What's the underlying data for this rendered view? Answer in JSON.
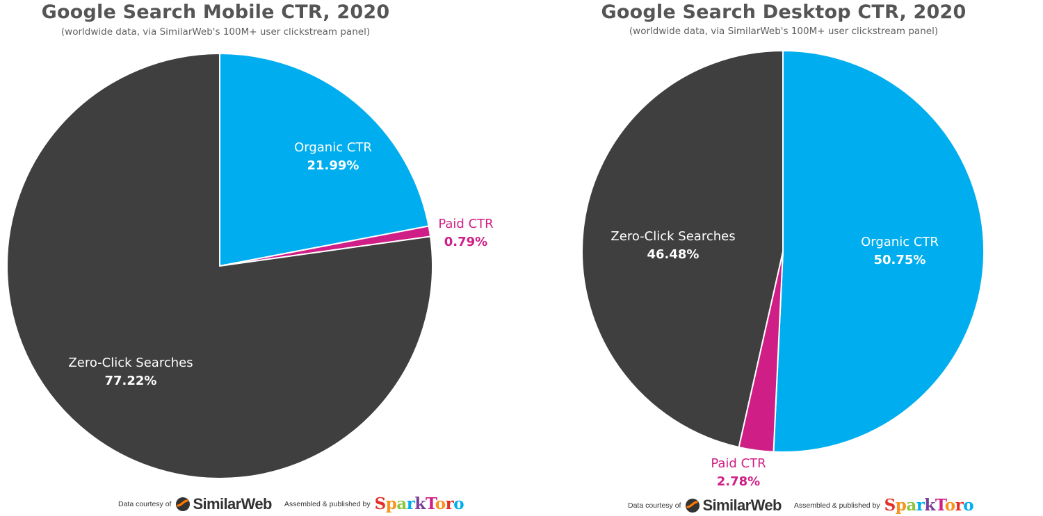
{
  "colors": {
    "organic": "#00AEEF",
    "paid": "#CF1F87",
    "zero": "#3F3F3F",
    "title": "#555555",
    "label_light": "#FFFFFF",
    "label_dark": "#333333"
  },
  "chart_data": [
    {
      "type": "pie",
      "title": "Google Search Mobile CTR, 2020",
      "subtitle": "(worldwide data, via SimilarWeb's 100M+ user clickstream panel)",
      "slices": [
        {
          "label": "Organic CTR",
          "value_label": "21.99%",
          "value": 21.99,
          "color": "#00AEEF"
        },
        {
          "label": "Paid CTR",
          "value_label": "0.79%",
          "value": 0.79,
          "color": "#CF1F87"
        },
        {
          "label": "Zero-Click Searches",
          "value_label": "77.22%",
          "value": 77.22,
          "color": "#3F3F3F"
        }
      ],
      "footer": {
        "courtesy_text": "Data courtesy of",
        "courtesy_brand": "SimilarWeb",
        "published_text": "Assembled & published by",
        "published_brand": "SparkToro"
      }
    },
    {
      "type": "pie",
      "title": "Google Search Desktop CTR, 2020",
      "subtitle": "(worldwide data, via SimilarWeb's 100M+ user clickstream panel)",
      "slices": [
        {
          "label": "Organic CTR",
          "value_label": "50.75%",
          "value": 50.75,
          "color": "#00AEEF"
        },
        {
          "label": "Paid CTR",
          "value_label": "2.78%",
          "value": 2.78,
          "color": "#CF1F87"
        },
        {
          "label": "Zero-Click Searches",
          "value_label": "46.48%",
          "value": 46.48,
          "color": "#3F3F3F"
        }
      ],
      "footer": {
        "courtesy_text": "Data courtesy of",
        "courtesy_brand": "SimilarWeb",
        "published_text": "Assembled & published by",
        "published_brand": "SparkToro"
      }
    }
  ]
}
